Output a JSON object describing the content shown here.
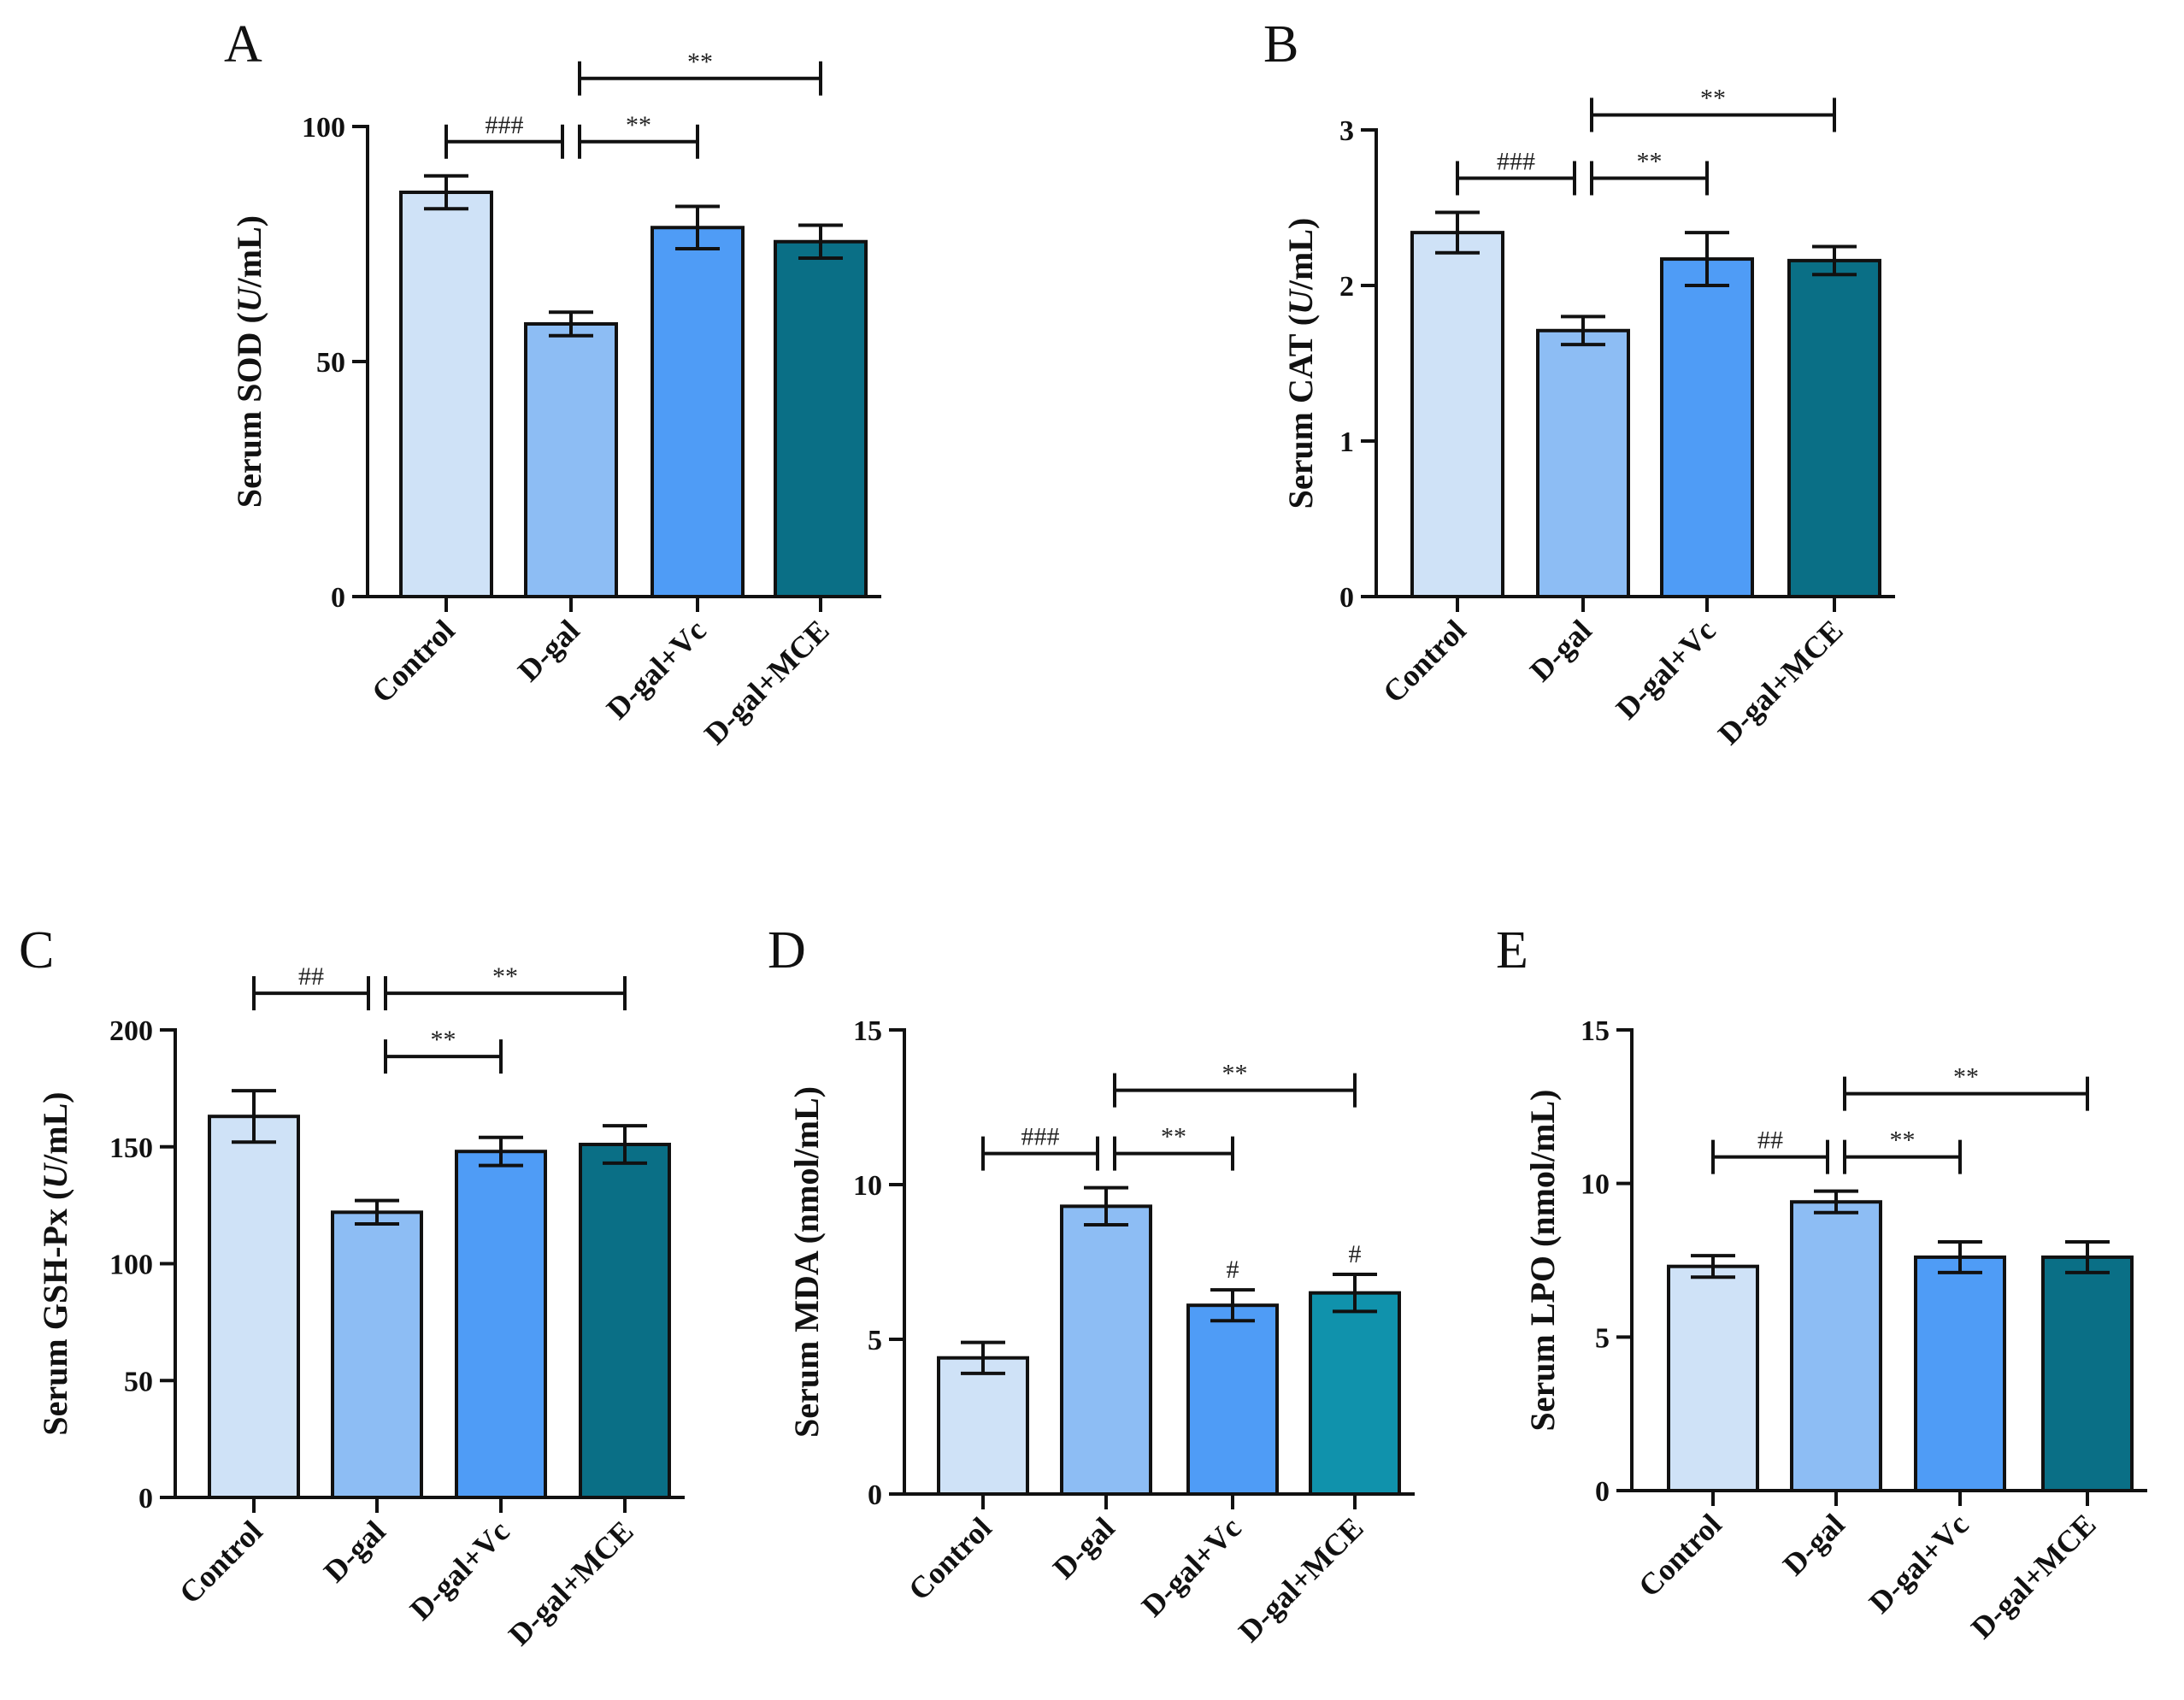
{
  "chart_data": [
    {
      "panel": "A",
      "type": "bar",
      "categories": [
        "Control",
        "D-gal",
        "D-gal+Vc",
        "D-gal+MCE"
      ],
      "values": [
        86,
        58,
        78.5,
        75.5
      ],
      "errors": [
        3.5,
        2.5,
        4.5,
        3.5
      ],
      "ylabel_prefix": "Serum SOD (",
      "ylabel_italic": "U",
      "ylabel_suffix": "/mL)",
      "ylim": [
        0,
        100
      ],
      "yticks": [
        "0",
        "50",
        "100"
      ],
      "ytick_values": [
        0,
        50,
        100
      ],
      "colors": [
        "#cfe2f7",
        "#8dbdf4",
        "#4f9cf6",
        "#0a6f86"
      ],
      "significance": [
        {
          "from": 0,
          "to": 1,
          "label": "###",
          "level": 1
        },
        {
          "from": 1,
          "to": 2,
          "label": "**",
          "level": 1
        },
        {
          "from": 1,
          "to": 3,
          "label": "**",
          "level": 2
        }
      ],
      "bar_marks": []
    },
    {
      "panel": "B",
      "type": "bar",
      "categories": [
        "Control",
        "D-gal",
        "D-gal+Vc",
        "D-gal+MCE"
      ],
      "values": [
        2.34,
        1.71,
        2.17,
        2.16
      ],
      "errors": [
        0.13,
        0.09,
        0.17,
        0.09
      ],
      "ylabel_prefix": "Serum CAT (",
      "ylabel_italic": "U",
      "ylabel_suffix": "/mL)",
      "ylim": [
        0,
        3
      ],
      "yticks": [
        "0",
        "1",
        "2",
        "3"
      ],
      "ytick_values": [
        0,
        1,
        2,
        3
      ],
      "colors": [
        "#cfe2f7",
        "#8dbdf4",
        "#4f9cf6",
        "#0a6f86"
      ],
      "significance": [
        {
          "from": 0,
          "to": 1,
          "label": "###",
          "level": 1
        },
        {
          "from": 1,
          "to": 2,
          "label": "**",
          "level": 1
        },
        {
          "from": 1,
          "to": 3,
          "label": "**",
          "level": 2
        }
      ],
      "bar_marks": []
    },
    {
      "panel": "C",
      "type": "bar",
      "categories": [
        "Control",
        "D-gal",
        "D-gal+Vc",
        "D-gal+MCE"
      ],
      "values": [
        163,
        122,
        148,
        151
      ],
      "errors": [
        11,
        5,
        6,
        8
      ],
      "ylabel_prefix": "Serum GSH-Px (",
      "ylabel_italic": "U",
      "ylabel_suffix": "/mL)",
      "ylim": [
        0,
        200
      ],
      "yticks": [
        "0",
        "50",
        "100",
        "150",
        "200"
      ],
      "ytick_values": [
        0,
        50,
        100,
        150,
        200
      ],
      "colors": [
        "#cfe2f7",
        "#8dbdf4",
        "#4f9cf6",
        "#0a6f86"
      ],
      "significance": [
        {
          "from": 0,
          "to": 1,
          "label": "##",
          "level": 2
        },
        {
          "from": 1,
          "to": 2,
          "label": "**",
          "level": 1
        },
        {
          "from": 1,
          "to": 3,
          "label": "**",
          "level": 2
        }
      ],
      "bar_marks": []
    },
    {
      "panel": "D",
      "type": "bar",
      "categories": [
        "Control",
        "D-gal",
        "D-gal+Vc",
        "D-gal+MCE"
      ],
      "values": [
        4.4,
        9.3,
        6.1,
        6.5
      ],
      "errors": [
        0.5,
        0.6,
        0.5,
        0.6
      ],
      "ylabel_prefix": "Serum MDA (nmol/mL)",
      "ylabel_italic": "",
      "ylabel_suffix": "",
      "ylim": [
        0,
        15
      ],
      "yticks": [
        "0",
        "5",
        "10",
        "15"
      ],
      "ytick_values": [
        0,
        5,
        10,
        15
      ],
      "colors": [
        "#cfe2f7",
        "#8dbdf4",
        "#4f9cf6",
        "#1092ac"
      ],
      "significance": [
        {
          "from": 0,
          "to": 1,
          "label": "###",
          "level": 1
        },
        {
          "from": 1,
          "to": 2,
          "label": "**",
          "level": 1
        },
        {
          "from": 1,
          "to": 3,
          "label": "**",
          "level": 2
        }
      ],
      "bar_marks": [
        {
          "index": 2,
          "label": "#"
        },
        {
          "index": 3,
          "label": "#"
        }
      ]
    },
    {
      "panel": "E",
      "type": "bar",
      "categories": [
        "Control",
        "D-gal",
        "D-gal+Vc",
        "D-gal+MCE"
      ],
      "values": [
        7.3,
        9.4,
        7.6,
        7.6
      ],
      "errors": [
        0.35,
        0.35,
        0.5,
        0.5
      ],
      "ylabel_prefix": "Serum LPO (nmol/mL)",
      "ylabel_italic": "",
      "ylabel_suffix": "",
      "ylim": [
        0,
        15
      ],
      "yticks": [
        "0",
        "5",
        "10",
        "15"
      ],
      "ytick_values": [
        0,
        5,
        10,
        15
      ],
      "colors": [
        "#cfe2f7",
        "#8dbdf4",
        "#4f9cf6",
        "#0a6f86"
      ],
      "significance": [
        {
          "from": 0,
          "to": 1,
          "label": "##",
          "level": 1
        },
        {
          "from": 1,
          "to": 2,
          "label": "**",
          "level": 1
        },
        {
          "from": 1,
          "to": 3,
          "label": "**",
          "level": 2
        }
      ],
      "bar_marks": []
    }
  ]
}
